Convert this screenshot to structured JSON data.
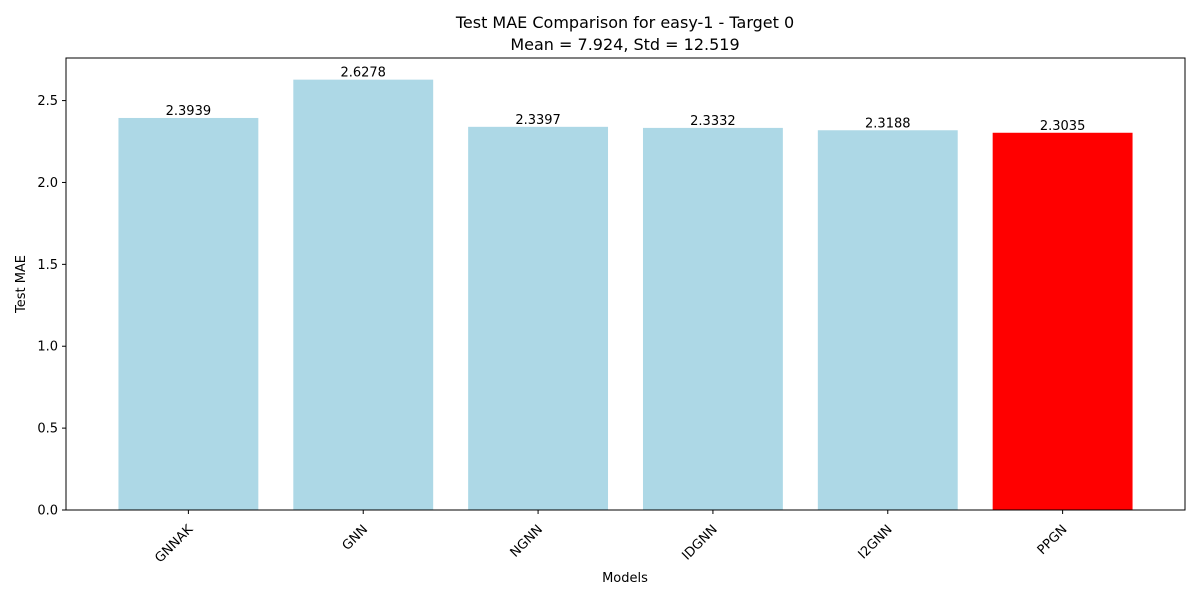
{
  "chart_data": {
    "type": "bar",
    "title": "Test MAE Comparison for easy-1 - Target 0",
    "subtitle": "Mean = 7.924, Std = 12.519",
    "xlabel": "Models",
    "ylabel": "Test MAE",
    "categories": [
      "GNNAK",
      "GNN",
      "NGNN",
      "IDGNN",
      "I2GNN",
      "PPGN"
    ],
    "values": [
      2.3939,
      2.6278,
      2.3397,
      2.3332,
      2.3188,
      2.3035
    ],
    "value_labels": [
      "2.3939",
      "2.6278",
      "2.3397",
      "2.3332",
      "2.3188",
      "2.3035"
    ],
    "bar_colors": [
      "#add8e6",
      "#add8e6",
      "#add8e6",
      "#add8e6",
      "#add8e6",
      "#ff0000"
    ],
    "ylim": [
      0,
      2.76
    ],
    "yticks": [
      0.0,
      0.5,
      1.0,
      1.5,
      2.0,
      2.5
    ],
    "ytick_labels": [
      "0.0",
      "0.5",
      "1.0",
      "1.5",
      "2.0",
      "2.5"
    ],
    "xtick_rotation": -45,
    "grid": false,
    "legend": "none"
  }
}
